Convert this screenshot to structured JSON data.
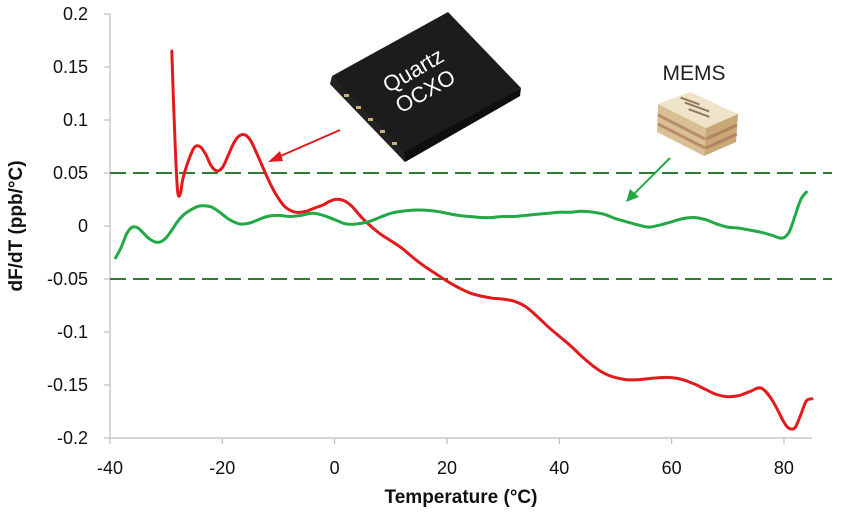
{
  "chart_data": {
    "type": "line",
    "title": "",
    "xlabel": "Temperature (°C)",
    "ylabel": "dF/dT (ppb/°C)",
    "xlim": [
      -40,
      85
    ],
    "ylim": [
      -0.2,
      0.2
    ],
    "x_ticks": [
      -40,
      -20,
      0,
      20,
      40,
      60,
      80
    ],
    "y_ticks": [
      0.2,
      0.15,
      0.1,
      0.05,
      0,
      -0.05,
      -0.1,
      -0.15,
      -0.2
    ],
    "x_tick_labels": [
      "-40",
      "-20",
      "0",
      "20",
      "40",
      "60",
      "80"
    ],
    "y_tick_labels": [
      "0.2",
      "0.15",
      "0.1",
      "0.05",
      "0",
      "-0.05",
      "-0.1",
      "-0.15",
      "-0.2"
    ],
    "grid": false,
    "legend": "none",
    "reference_lines": [
      {
        "y": 0.05,
        "style": "dashed",
        "color": "#2e7d32"
      },
      {
        "y": -0.05,
        "style": "dashed",
        "color": "#2e7d32"
      }
    ],
    "series": [
      {
        "color": "#e31a1c",
        "x": [
          -29,
          -28.5,
          -28,
          -27.5,
          -27,
          -26,
          -25,
          -24,
          -23,
          -22,
          -21,
          -20,
          -19,
          -18,
          -17,
          -16,
          -15,
          -14,
          -13,
          -12,
          -11,
          -10,
          -9,
          -8,
          -7,
          -6,
          -5,
          -4,
          -3,
          -2,
          -1,
          0,
          1,
          2,
          3,
          4,
          5,
          6,
          8,
          10,
          12,
          14,
          16,
          18,
          20,
          22,
          24,
          26,
          28,
          30,
          32,
          34,
          36,
          38,
          40,
          42,
          44,
          46,
          48,
          50,
          52,
          54,
          56,
          58,
          60,
          62,
          64,
          66,
          68,
          70,
          72,
          74,
          76,
          78,
          80,
          81,
          82,
          83,
          84,
          85
        ],
        "y": [
          0.165,
          0.09,
          0.035,
          0.03,
          0.045,
          0.062,
          0.074,
          0.075,
          0.068,
          0.057,
          0.052,
          0.055,
          0.066,
          0.078,
          0.085,
          0.086,
          0.081,
          0.07,
          0.058,
          0.046,
          0.035,
          0.026,
          0.019,
          0.015,
          0.013,
          0.013,
          0.014,
          0.016,
          0.018,
          0.02,
          0.023,
          0.025,
          0.025,
          0.023,
          0.019,
          0.013,
          0.007,
          0.002,
          -0.007,
          -0.014,
          -0.021,
          -0.03,
          -0.038,
          -0.045,
          -0.052,
          -0.058,
          -0.063,
          -0.066,
          -0.068,
          -0.069,
          -0.071,
          -0.076,
          -0.085,
          -0.095,
          -0.104,
          -0.113,
          -0.123,
          -0.132,
          -0.139,
          -0.143,
          -0.145,
          -0.145,
          -0.144,
          -0.143,
          -0.143,
          -0.145,
          -0.149,
          -0.154,
          -0.159,
          -0.161,
          -0.16,
          -0.156,
          -0.153,
          -0.165,
          -0.185,
          -0.191,
          -0.19,
          -0.178,
          -0.165,
          -0.163
        ]
      },
      {
        "color": "#22a845",
        "x": [
          -39,
          -38,
          -37,
          -36,
          -35,
          -34,
          -33,
          -32,
          -31,
          -30,
          -29,
          -28,
          -27,
          -26,
          -25,
          -24,
          -23,
          -22,
          -21,
          -20,
          -19,
          -18,
          -17,
          -16,
          -15,
          -14,
          -12,
          -10,
          -8,
          -6,
          -4,
          -2,
          0,
          2,
          4,
          6,
          8,
          10,
          12,
          14,
          16,
          18,
          20,
          22,
          24,
          26,
          28,
          30,
          32,
          34,
          36,
          38,
          40,
          42,
          44,
          46,
          48,
          50,
          52,
          54,
          56,
          58,
          60,
          62,
          64,
          66,
          68,
          70,
          72,
          74,
          76,
          78,
          79,
          80,
          81,
          82,
          83,
          84
        ],
        "y": [
          -0.03,
          -0.02,
          -0.007,
          -0.001,
          -0.002,
          -0.007,
          -0.012,
          -0.015,
          -0.015,
          -0.011,
          -0.004,
          0.004,
          0.01,
          0.014,
          0.017,
          0.019,
          0.019,
          0.018,
          0.015,
          0.011,
          0.007,
          0.004,
          0.002,
          0.002,
          0.003,
          0.005,
          0.009,
          0.01,
          0.009,
          0.01,
          0.012,
          0.01,
          0.006,
          0.002,
          0.002,
          0.004,
          0.008,
          0.012,
          0.014,
          0.015,
          0.015,
          0.014,
          0.012,
          0.01,
          0.009,
          0.008,
          0.008,
          0.009,
          0.009,
          0.01,
          0.011,
          0.012,
          0.013,
          0.013,
          0.014,
          0.013,
          0.011,
          0.007,
          0.004,
          0.001,
          -0.001,
          0.001,
          0.004,
          0.007,
          0.008,
          0.006,
          0.002,
          -0.001,
          -0.002,
          -0.004,
          -0.006,
          -0.009,
          -0.011,
          -0.011,
          -0.005,
          0.01,
          0.025,
          0.032
        ]
      }
    ],
    "annotations": [
      {
        "text": "Quartz OCXO"
      },
      {
        "text": "MEMS"
      }
    ]
  },
  "colors": {
    "axis": "#bfbfbf",
    "quartz_line": "#e31a1c",
    "mems_line": "#22a845",
    "reference_line": "#2e7d32",
    "ocxo_body": "#1a1a1a",
    "mems_chip": "#e6d3b5"
  }
}
